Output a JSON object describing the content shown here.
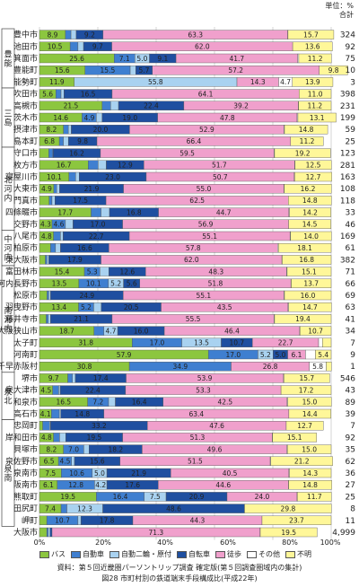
{
  "header": {
    "unit_label": "単位：%",
    "total_label": "合計"
  },
  "legend": [
    {
      "label": "バス",
      "color": "#8cc63f"
    },
    {
      "label": "自動車",
      "color": "#3f7fd0"
    },
    {
      "label": "自動二輪・原付",
      "color": "#a9d2f0"
    },
    {
      "label": "自転車",
      "color": "#1f4fa0"
    },
    {
      "label": "徒歩",
      "color": "#f0a0cc"
    },
    {
      "label": "その他",
      "color": "#ffffff"
    },
    {
      "label": "不明",
      "color": "#fff799"
    }
  ],
  "footer": {
    "source": "資料：第５回近畿圏パーソントリップ調査 確定版(第５回調査圏域内の集計)",
    "caption": "図28 市町村別の鉄道端末手段構成比(平成22年)"
  },
  "chart_data": {
    "type": "bar",
    "stacked": true,
    "orientation": "horizontal",
    "xlim": [
      0,
      100
    ],
    "xticks": [
      "0%",
      "20%",
      "40%",
      "60%",
      "80%",
      "100%"
    ],
    "series_names": [
      "バス",
      "自動車",
      "自動二輪・原付",
      "自転車",
      "徒歩",
      "その他",
      "不明"
    ],
    "groups": [
      {
        "name": "豊能",
        "rows": [
          0,
          4
        ]
      },
      {
        "name": "三島",
        "rows": [
          5,
          9
        ]
      },
      {
        "name": "北河内",
        "rows": [
          10,
          16
        ]
      },
      {
        "name": "中河内",
        "rows": [
          17,
          19
        ]
      },
      {
        "name": "南河内",
        "rows": [
          20,
          28
        ]
      },
      {
        "name": "泉北",
        "rows": [
          29,
          32
        ]
      },
      {
        "name": "泉南",
        "rows": [
          33,
          41
        ]
      }
    ],
    "rows": [
      {
        "name": "豊中市",
        "v": [
          8.9,
          1.9,
          1.8,
          9.2,
          63.3,
          0.1,
          15.7
        ],
        "total": "324"
      },
      {
        "name": "池田市",
        "v": [
          10.5,
          2.7,
          1.9,
          9.7,
          62.0,
          0,
          13.6
        ],
        "total": "92"
      },
      {
        "name": "箕面市",
        "v": [
          25.6,
          7.1,
          5.0,
          9.1,
          41.7,
          0.4,
          11.2
        ],
        "total": "75"
      },
      {
        "name": "豊能町",
        "v": [
          15.6,
          15.5,
          1.9,
          5.7,
          57.2,
          0,
          9.8
        ],
        "total": "10"
      },
      {
        "name": "能勢町",
        "v": [
          11.9,
          0,
          55.8,
          0,
          14.3,
          4.7,
          13.9
        ],
        "total": "3"
      },
      {
        "name": "吹田市",
        "v": [
          5.6,
          1.8,
          1.0,
          16.5,
          64.1,
          0,
          11.0
        ],
        "total": "398"
      },
      {
        "name": "高槻市",
        "v": [
          21.5,
          2.9,
          2.7,
          22.4,
          39.2,
          0.1,
          11.2
        ],
        "total": "231"
      },
      {
        "name": "茨木市",
        "v": [
          14.6,
          4.9,
          2.0,
          19.0,
          47.8,
          0.3,
          13.1
        ],
        "total": "199"
      },
      {
        "name": "摂津市",
        "v": [
          8.2,
          1.7,
          1.0,
          20.0,
          52.9,
          0.2,
          14.8
        ],
        "total": "59"
      },
      {
        "name": "島本町",
        "v": [
          6.8,
          1.4,
          1.7,
          9.8,
          66.4,
          0,
          11.2
        ],
        "total": "25"
      },
      {
        "name": "守口市",
        "v": [
          3.2,
          1.4,
          0.1,
          16.2,
          59.5,
          0.2,
          19.2
        ],
        "total": "123"
      },
      {
        "name": "枚方市",
        "v": [
          16.7,
          3.4,
          2.8,
          12.9,
          51.7,
          0.1,
          12.5
        ],
        "total": "281"
      },
      {
        "name": "寝屋川市",
        "v": [
          10.1,
          2.3,
          1.2,
          23.0,
          50.7,
          0.2,
          12.7
        ],
        "total": "163"
      },
      {
        "name": "大東市",
        "v": [
          4.9,
          1.0,
          1.0,
          21.9,
          55.0,
          0.1,
          16.2
        ],
        "total": "108"
      },
      {
        "name": "門真市",
        "v": [
          3.3,
          1.0,
          1.0,
          17.5,
          62.5,
          0,
          14.8
        ],
        "total": "118"
      },
      {
        "name": "四條畷市",
        "v": [
          17.7,
          3.4,
          2.9,
          16.8,
          44.7,
          0.2,
          14.2
        ],
        "total": "33"
      },
      {
        "name": "交野市",
        "v": [
          4.3,
          4.6,
          2.6,
          17.0,
          56.9,
          0,
          14.5
        ],
        "total": "46"
      },
      {
        "name": "八尾市",
        "v": [
          4.8,
          2.4,
          0.9,
          22.7,
          55.1,
          0.2,
          14.0
        ],
        "total": "169"
      },
      {
        "name": "柏原市",
        "v": [
          3.8,
          1.7,
          1.7,
          16.6,
          57.8,
          0.3,
          18.1
        ],
        "total": "61"
      },
      {
        "name": "東大阪市",
        "v": [
          2.0,
          0.6,
          0.6,
          17.9,
          62.0,
          0.1,
          16.8
        ],
        "total": "382"
      },
      {
        "name": "富田林市",
        "v": [
          15.4,
          5.3,
          3.1,
          12.6,
          48.3,
          0.2,
          15.1
        ],
        "total": "71"
      },
      {
        "name": "河内長野市",
        "v": [
          13.5,
          10.1,
          5.2,
          5.6,
          51.8,
          0.1,
          13.7
        ],
        "total": "66"
      },
      {
        "name": "松原市",
        "v": [
          2.6,
          0.6,
          0.6,
          24.9,
          55.1,
          0.2,
          16.0
        ],
        "total": "69"
      },
      {
        "name": "羽曳野市",
        "v": [
          13.4,
          5.2,
          2.6,
          20.5,
          43.5,
          0.2,
          14.7
        ],
        "total": "63"
      },
      {
        "name": "藤井寺市",
        "v": [
          2.3,
          0.7,
          0.8,
          21.1,
          55.5,
          0.2,
          19.4
        ],
        "total": "41"
      },
      {
        "name": "大阪狭山市",
        "v": [
          18.7,
          3.4,
          4.7,
          16.0,
          46.4,
          0.1,
          10.7
        ],
        "total": "34"
      },
      {
        "name": "太子町",
        "v": [
          31.8,
          17.0,
          13.5,
          10.7,
          22.7,
          1.3,
          3.0
        ],
        "total": "7"
      },
      {
        "name": "河南町",
        "v": [
          57.9,
          17.0,
          5.2,
          5.0,
          6.1,
          3.4,
          5.4
        ],
        "total": "9"
      },
      {
        "name": "千早赤阪村",
        "v": [
          30.8,
          34.9,
          0,
          0,
          26.8,
          5.8,
          1.8
        ],
        "total": "1"
      },
      {
        "name": "堺市",
        "v": [
          9.7,
          1.6,
          1.0,
          17.4,
          53.9,
          0.2,
          15.7
        ],
        "total": "546"
      },
      {
        "name": "泉大津市",
        "v": [
          4.5,
          2.1,
          0.5,
          22.4,
          53.3,
          0,
          17.2
        ],
        "total": "43"
      },
      {
        "name": "和泉市",
        "v": [
          16.5,
          7.2,
          2.3,
          16.4,
          42.5,
          0.2,
          15.0
        ],
        "total": "89"
      },
      {
        "name": "高石市",
        "v": [
          4.1,
          2.7,
          0.5,
          14.8,
          63.4,
          0,
          14.4
        ],
        "total": "39"
      },
      {
        "name": "忠岡町",
        "v": [
          1.1,
          2.4,
          0.3,
          33.2,
          47.6,
          0,
          12.7
        ],
        "total": "7"
      },
      {
        "name": "岸和田市",
        "v": [
          4.8,
          2.1,
          2.1,
          19.5,
          51.3,
          0.1,
          15.1
        ],
        "total": "92"
      },
      {
        "name": "貝塚市",
        "v": [
          8.2,
          7.0,
          1.8,
          18.2,
          49.6,
          0.2,
          15.0
        ],
        "total": "35"
      },
      {
        "name": "泉佐野市",
        "v": [
          6.5,
          4.5,
          1.0,
          15.6,
          51.5,
          0.2,
          21.2
        ],
        "total": "62"
      },
      {
        "name": "泉南市",
        "v": [
          7.5,
          10.6,
          5.0,
          21.9,
          40.5,
          0.2,
          14.3
        ],
        "total": "36"
      },
      {
        "name": "阪南市",
        "v": [
          6.1,
          12.8,
          4.2,
          17.6,
          44.6,
          0.1,
          14.8
        ],
        "total": "27"
      },
      {
        "name": "熊取町",
        "v": [
          19.5,
          16.4,
          7.5,
          20.9,
          24.0,
          0.1,
          11.7
        ],
        "total": "25"
      },
      {
        "name": "田尻町",
        "v": [
          7.4,
          2.0,
          12.3,
          48.6,
          0,
          0,
          29.8
        ],
        "total": "8"
      },
      {
        "name": "岬町",
        "v": [
          2.5,
          10.7,
          1.0,
          17.8,
          44.3,
          0,
          23.7
        ],
        "total": "11"
      },
      {
        "name": "大阪市",
        "v": [
          2.5,
          0.5,
          0.6,
          0.7,
          71.3,
          0.1,
          19.5
        ],
        "total": "4,999"
      }
    ]
  }
}
